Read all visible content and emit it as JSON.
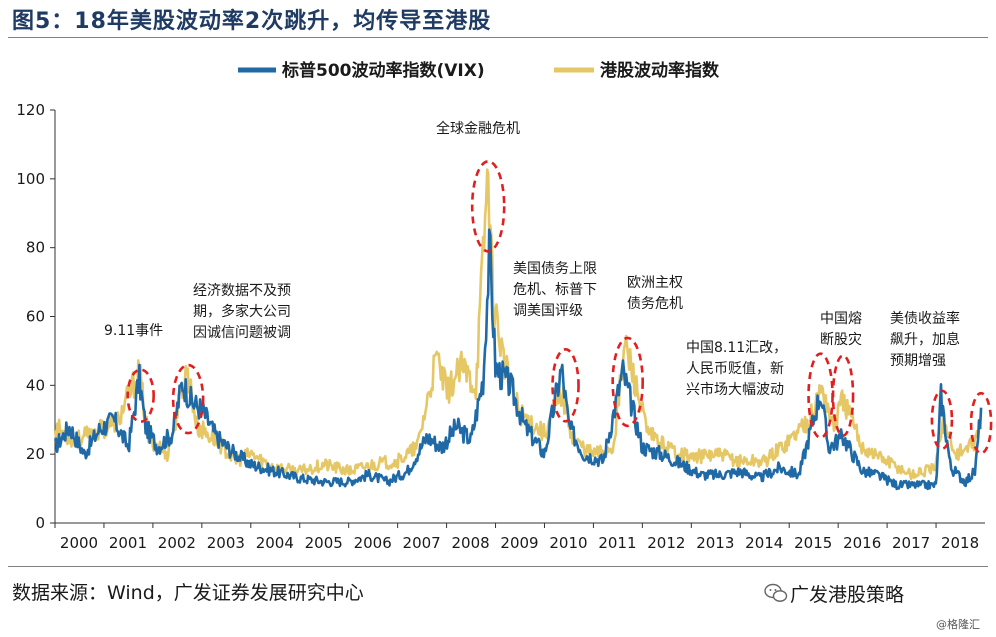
{
  "header": {
    "title": "图5：18年美股波动率2次跳升，均传导至港股"
  },
  "footer": {
    "source": "数据来源：Wind，广发证券发展研究中心",
    "wechat": "广发港股策略",
    "credit": "@格隆汇"
  },
  "colors": {
    "vix": "#1f6aa6",
    "hk": "#e6c766",
    "ellipse": "#e02020"
  },
  "icons": {
    "wechat": "wechat-icon"
  },
  "chart_data": {
    "type": "line",
    "title": "图5：18年美股波动率2次跳升，均传导至港股",
    "xlabel": "",
    "ylabel": "",
    "xlim": [
      2000.0,
      2019.0
    ],
    "ylim": [
      0,
      120
    ],
    "yticks": [
      0,
      20,
      40,
      60,
      80,
      100,
      120
    ],
    "xticks": [
      "2000",
      "2001",
      "2002",
      "2003",
      "2004",
      "2005",
      "2006",
      "2007",
      "2008",
      "2009",
      "2010",
      "2011",
      "2012",
      "2013",
      "2014",
      "2015",
      "2016",
      "2017",
      "2018"
    ],
    "grid": false,
    "legend": "top-center",
    "series": [
      {
        "name": "标普500波动率指数(VIX)",
        "color": "#1f6aa6",
        "x": [
          2000.0,
          2000.3,
          2000.6,
          2000.9,
          2001.2,
          2001.5,
          2001.72,
          2001.85,
          2002.1,
          2002.4,
          2002.6,
          2002.8,
          2003.0,
          2003.3,
          2003.6,
          2004.0,
          2004.5,
          2005.0,
          2005.5,
          2006.0,
          2006.4,
          2006.8,
          2007.2,
          2007.6,
          2007.9,
          2008.2,
          2008.5,
          2008.75,
          2008.88,
          2009.0,
          2009.3,
          2009.6,
          2010.0,
          2010.35,
          2010.5,
          2010.8,
          2011.2,
          2011.6,
          2011.75,
          2012.0,
          2012.4,
          2012.8,
          2013.2,
          2013.6,
          2014.0,
          2014.4,
          2014.8,
          2015.2,
          2015.64,
          2015.8,
          2016.1,
          2016.5,
          2016.8,
          2017.2,
          2017.6,
          2018.0,
          2018.1,
          2018.3,
          2018.6,
          2018.8,
          2018.92
        ],
        "y": [
          22,
          28,
          20,
          27,
          30,
          22,
          42,
          28,
          22,
          26,
          41,
          35,
          33,
          25,
          21,
          17,
          15,
          13,
          12,
          12,
          14,
          12,
          15,
          25,
          22,
          28,
          24,
          42,
          80,
          45,
          40,
          28,
          20,
          45,
          28,
          20,
          18,
          44,
          36,
          22,
          20,
          17,
          14,
          14,
          15,
          13,
          16,
          14,
          38,
          22,
          25,
          15,
          14,
          11,
          11,
          11,
          37,
          16,
          12,
          15,
          34
        ]
      },
      {
        "name": "港股波动率指数",
        "color": "#e6c766",
        "x": [
          2000.0,
          2000.4,
          2000.8,
          2001.3,
          2001.72,
          2001.9,
          2002.3,
          2002.7,
          2002.9,
          2003.3,
          2003.7,
          2004.0,
          2004.5,
          2005.0,
          2005.5,
          2006.0,
          2006.5,
          2007.0,
          2007.4,
          2007.8,
          2008.0,
          2008.3,
          2008.6,
          2008.85,
          2008.95,
          2009.2,
          2009.5,
          2010.0,
          2010.35,
          2010.6,
          2011.0,
          2011.4,
          2011.65,
          2011.8,
          2012.1,
          2012.5,
          2013.0,
          2013.5,
          2014.0,
          2014.5,
          2015.0,
          2015.5,
          2015.66,
          2015.9,
          2016.1,
          2016.5,
          2017.0,
          2017.5,
          2018.0,
          2018.12,
          2018.4,
          2018.7,
          2018.92
        ],
        "y": [
          28,
          24,
          26,
          30,
          44,
          25,
          20,
          45,
          28,
          24,
          18,
          20,
          16,
          15,
          17,
          15,
          17,
          18,
          22,
          48,
          38,
          45,
          40,
          104,
          65,
          45,
          32,
          26,
          38,
          24,
          20,
          22,
          52,
          44,
          26,
          22,
          19,
          20,
          18,
          18,
          24,
          32,
          40,
          28,
          36,
          22,
          18,
          14,
          16,
          30,
          20,
          22,
          27
        ]
      }
    ],
    "annotations": [
      {
        "lines": [
          "9.11事件"
        ],
        "x": 2001.72
      },
      {
        "lines": [
          "经济数据不及预",
          "期，多家大公司",
          "因诚信问题被调"
        ],
        "x": 2002.7
      },
      {
        "lines": [
          "全球金融危机"
        ],
        "x": 2008.85
      },
      {
        "lines": [
          "美国债务上限",
          "危机、标普下",
          "调美国评级"
        ],
        "x": 2010.4
      },
      {
        "lines": [
          "欧洲主权",
          "债务危机"
        ],
        "x": 2011.7
      },
      {
        "lines": [
          "中国8.11汇改，",
          "人民币贬值，新",
          "兴市场大幅波动"
        ],
        "x": 2015.64
      },
      {
        "lines": [
          "中国熔",
          "断股灾"
        ],
        "x": 2016.1
      },
      {
        "lines": [
          "美债收益率",
          "飙升，加息",
          "预期增强"
        ],
        "x": 2018.1
      }
    ]
  }
}
